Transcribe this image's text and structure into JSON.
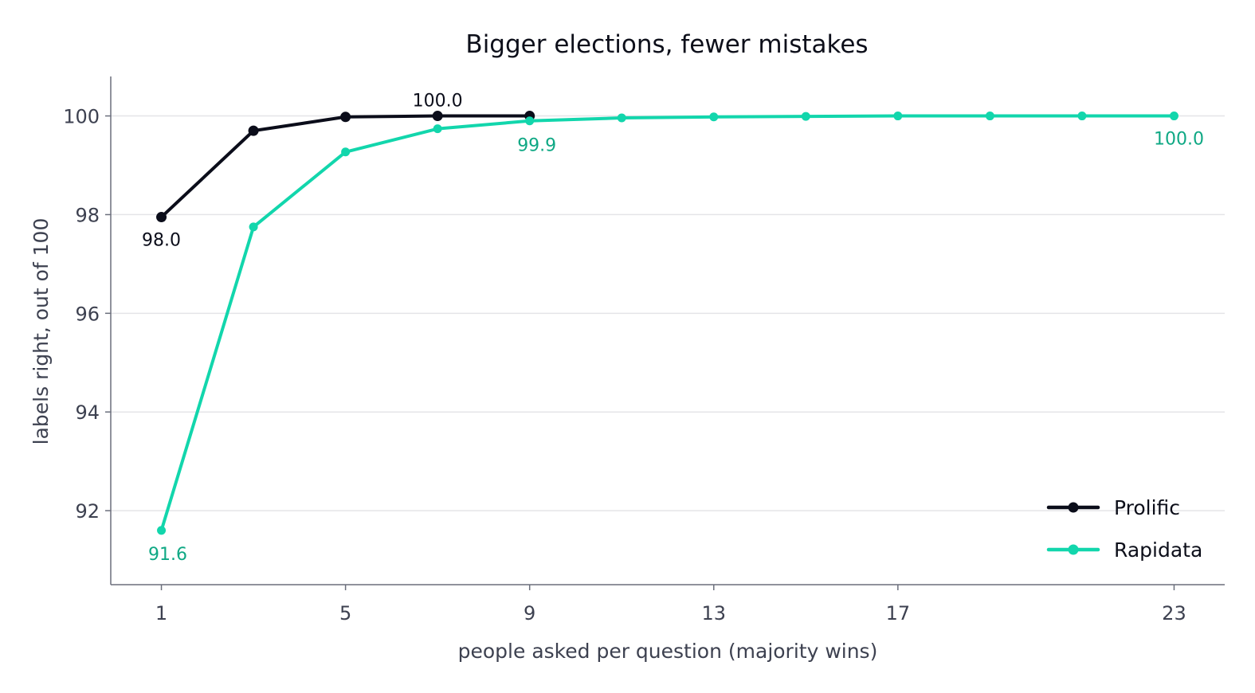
{
  "chart_data": {
    "type": "line",
    "title": "Bigger elections, fewer mistakes",
    "xlabel": "people asked per question (majority wins)",
    "ylabel": "labels right, out of 100",
    "xlim": [
      -0.1,
      24.1
    ],
    "ylim": [
      90.5,
      100.8
    ],
    "x_ticks": [
      1,
      5,
      9,
      13,
      17,
      23
    ],
    "y_ticks": [
      92,
      94,
      96,
      98,
      100
    ],
    "grid": "horizontal",
    "legend_position": "bottom-right",
    "series": [
      {
        "name": "Prolific",
        "color": "#0b0d1a",
        "x": [
          1,
          3,
          5,
          7,
          9
        ],
        "y": [
          97.95,
          99.7,
          99.98,
          100.0,
          100.0
        ]
      },
      {
        "name": "Rapidata",
        "color": "#12d6ac",
        "x": [
          1,
          3,
          5,
          7,
          9,
          11,
          13,
          15,
          17,
          19,
          21,
          23
        ],
        "y": [
          91.6,
          97.75,
          99.27,
          99.74,
          99.9,
          99.96,
          99.98,
          99.99,
          100.0,
          100.0,
          100.0,
          100.0
        ]
      }
    ],
    "annotations": [
      {
        "series": 0,
        "x": 1,
        "y": 97.95,
        "text": "98.0",
        "color": "#0b0d1a",
        "dx": 0,
        "dy": 36,
        "anchor": "middle"
      },
      {
        "series": 0,
        "x": 7,
        "y": 100.0,
        "text": "100.0",
        "color": "#0b0d1a",
        "dx": 0,
        "dy": -12,
        "anchor": "middle"
      },
      {
        "series": 1,
        "x": 1,
        "y": 91.6,
        "text": "91.6",
        "color": "#0fa884",
        "dx": 8,
        "dy": 37,
        "anchor": "middle"
      },
      {
        "series": 1,
        "x": 9,
        "y": 99.9,
        "text": "99.9",
        "color": "#0fa884",
        "dx": 9,
        "dy": 38,
        "anchor": "middle"
      },
      {
        "series": 1,
        "x": 23,
        "y": 100.0,
        "text": "100.0",
        "color": "#0fa884",
        "dx": 6,
        "dy": 36,
        "anchor": "middle"
      }
    ]
  }
}
